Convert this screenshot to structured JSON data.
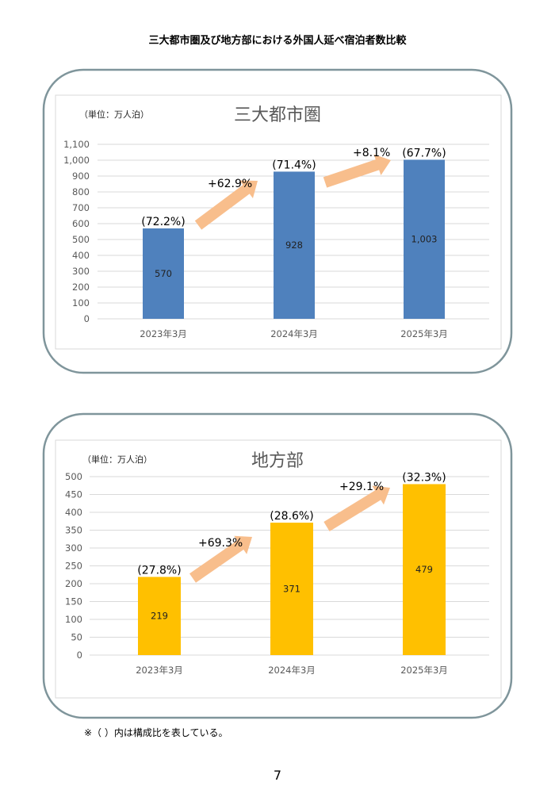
{
  "page_title": "三大都市圏及び地方部における外国人延べ宿泊者数比較",
  "footnote": "※（ ）内は構成比を表している。",
  "page_number": "7",
  "colors": {
    "metro_bar": "#4F81BD",
    "regional_bar": "#FFC000",
    "arrow": "#F8BE8C",
    "panel_border": "#7F959B"
  },
  "chart_data": [
    {
      "type": "bar",
      "title": "三大都市圏",
      "unit_label": "（単位：万人泊）",
      "categories": [
        "2023年3月",
        "2024年3月",
        "2025年3月"
      ],
      "values": [
        570,
        928,
        1003
      ],
      "value_labels": [
        "570",
        "928",
        "1,003"
      ],
      "share_labels": [
        "(72.2%)",
        "(71.4%)",
        "(67.7%)"
      ],
      "growth_labels": [
        "+62.9%",
        "+8.1%"
      ],
      "ylim": [
        0,
        1100
      ],
      "yticks": [
        "0",
        "100",
        "200",
        "300",
        "400",
        "500",
        "600",
        "700",
        "800",
        "900",
        "1,000",
        "1,100"
      ],
      "grid": true,
      "color": "#4F81BD"
    },
    {
      "type": "bar",
      "title": "地方部",
      "unit_label": "（単位：万人泊）",
      "categories": [
        "2023年3月",
        "2024年3月",
        "2025年3月"
      ],
      "values": [
        219,
        371,
        479
      ],
      "value_labels": [
        "219",
        "371",
        "479"
      ],
      "share_labels": [
        "(27.8%)",
        "(28.6%)",
        "(32.3%)"
      ],
      "growth_labels": [
        "+69.3%",
        "+29.1%"
      ],
      "ylim": [
        0,
        500
      ],
      "yticks": [
        "0",
        "50",
        "100",
        "150",
        "200",
        "250",
        "300",
        "350",
        "400",
        "450",
        "500"
      ],
      "grid": true,
      "color": "#FFC000"
    }
  ]
}
